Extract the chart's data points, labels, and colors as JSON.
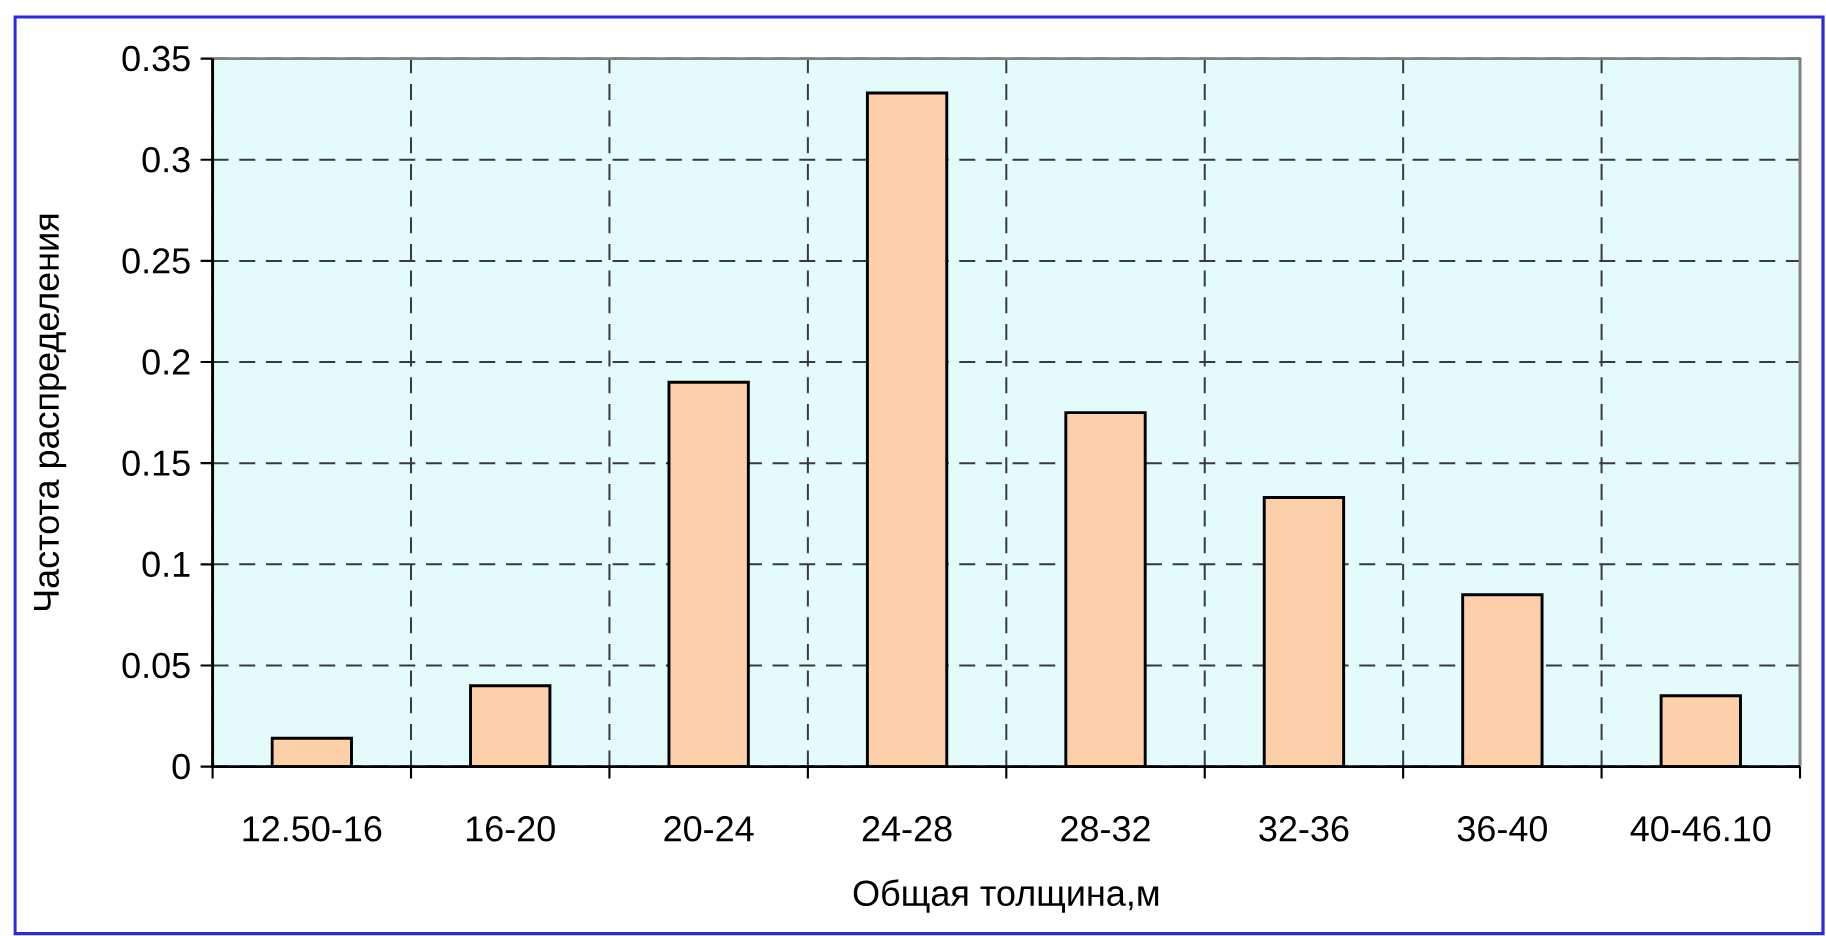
{
  "chart_data": {
    "type": "bar",
    "xlabel": "Общая толщина,м",
    "ylabel": "Частота распределения",
    "categories": [
      "12.50-16",
      "16-20",
      "20-24",
      "24-28",
      "28-32",
      "32-36",
      "36-40",
      "40-46.10"
    ],
    "values": [
      0.014,
      0.04,
      0.19,
      0.333,
      0.175,
      0.133,
      0.085,
      0.035
    ],
    "color": "#fdd0aa",
    "ylim": [
      0,
      0.35
    ],
    "yticks": [
      0,
      0.05,
      0.1,
      0.15,
      0.2,
      0.25,
      0.3,
      0.35
    ],
    "grid": true
  }
}
